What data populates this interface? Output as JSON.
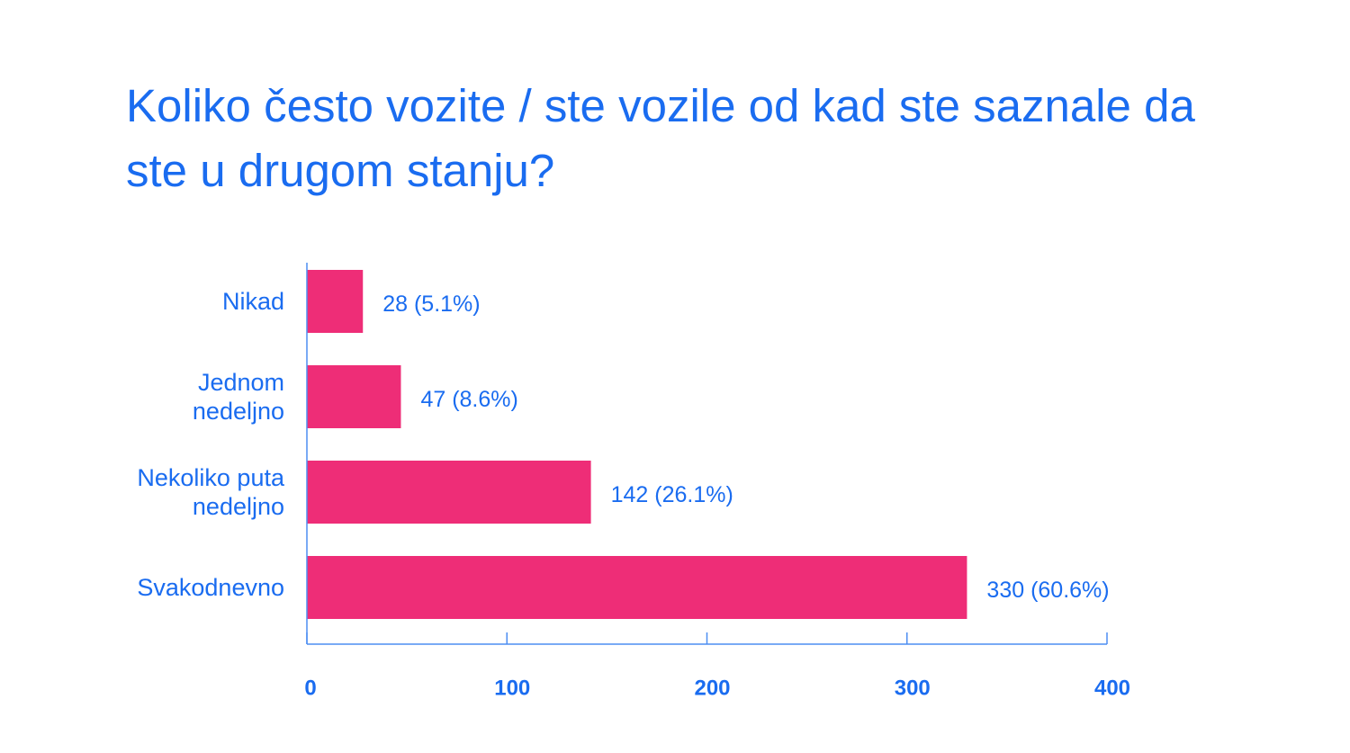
{
  "colors": {
    "text": "#1a6cf0",
    "bar": "#ee2d77",
    "axis": "#4d8ef2",
    "background": "#ffffff"
  },
  "chart_data": {
    "type": "bar",
    "orientation": "horizontal",
    "title": "Koliko često vozite / ste vozile od kad ste saznale da ste u drugom stanju?",
    "categories": [
      [
        "Nikad"
      ],
      [
        "Jednom",
        "nedeljno"
      ],
      [
        "Nekoliko puta",
        "nedeljno"
      ],
      [
        "Svakodnevno"
      ]
    ],
    "values": [
      28,
      47,
      142,
      330
    ],
    "data_labels": [
      "28 (5.1%)",
      "47 (8.6%)",
      "142 (26.1%)",
      "330 (60.6%)"
    ],
    "xlim": [
      0,
      400
    ],
    "x_ticks": [
      0,
      100,
      200,
      300,
      400
    ],
    "x_tick_labels": [
      "0",
      "100",
      "200",
      "300",
      "400"
    ],
    "xlabel": "",
    "ylabel": "",
    "grid": false,
    "legend": "none"
  }
}
